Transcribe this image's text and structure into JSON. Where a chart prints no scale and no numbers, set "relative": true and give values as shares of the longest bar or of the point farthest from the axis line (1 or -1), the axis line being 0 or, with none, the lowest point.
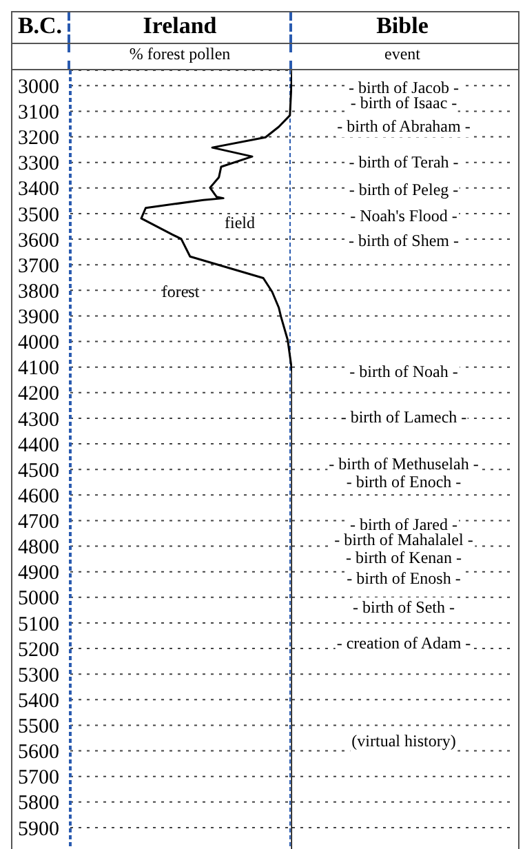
{
  "chart_data": {
    "type": "line",
    "title": "Ireland",
    "xlabel": "% forest pollen",
    "ylabel": "B.C.",
    "relative": true,
    "orientation": "horizontal",
    "grid": "y",
    "marker": "none",
    "line_style": "solid",
    "ylim": [
      6000,
      2940
    ],
    "yticks": [
      3000,
      3100,
      3200,
      3300,
      3400,
      3500,
      3600,
      3700,
      3800,
      3900,
      4000,
      4100,
      4200,
      4300,
      4400,
      4500,
      4600,
      4700,
      4800,
      4900,
      5000,
      5100,
      5200,
      5300,
      5400,
      5500,
      5600,
      5700,
      5800,
      5900
    ],
    "series": [
      {
        "color": "#000000",
        "x": [
          2940,
          3116,
          3161,
          3202,
          3242,
          3277,
          3317,
          3358,
          3399,
          3435,
          3440,
          3447,
          3478,
          3519,
          3582,
          3599,
          3668,
          3752,
          3806,
          3868,
          3904,
          3994,
          4119,
          6000
        ],
        "values": [
          1.0,
          0.99,
          0.94,
          0.88,
          0.64,
          0.82,
          0.68,
          0.67,
          0.63,
          0.66,
          0.69,
          0.6,
          0.34,
          0.32,
          0.46,
          0.5,
          0.54,
          0.87,
          0.91,
          0.94,
          0.95,
          0.98,
          1.0,
          1.0
        ]
      }
    ],
    "annotations": [
      "Bible",
      "event",
      "field",
      "forest",
      "- birth of Jacob -",
      "- birth of Isaac -",
      "- birth of Abraham -",
      "- birth of Terah -",
      "- birth of Peleg -",
      "- Noah's Flood -",
      "- birth of Shem -",
      "- birth of Noah -",
      "- birth of Lamech -",
      "- birth of Methuselah -",
      "- birth of Enoch -",
      "- birth of Jared -",
      "- birth of Mahalalel -",
      "- birth of Kenan -",
      "- birth of Enosh -",
      "- birth of Seth -",
      "- creation of Adam -",
      "(virtual history)"
    ]
  }
}
